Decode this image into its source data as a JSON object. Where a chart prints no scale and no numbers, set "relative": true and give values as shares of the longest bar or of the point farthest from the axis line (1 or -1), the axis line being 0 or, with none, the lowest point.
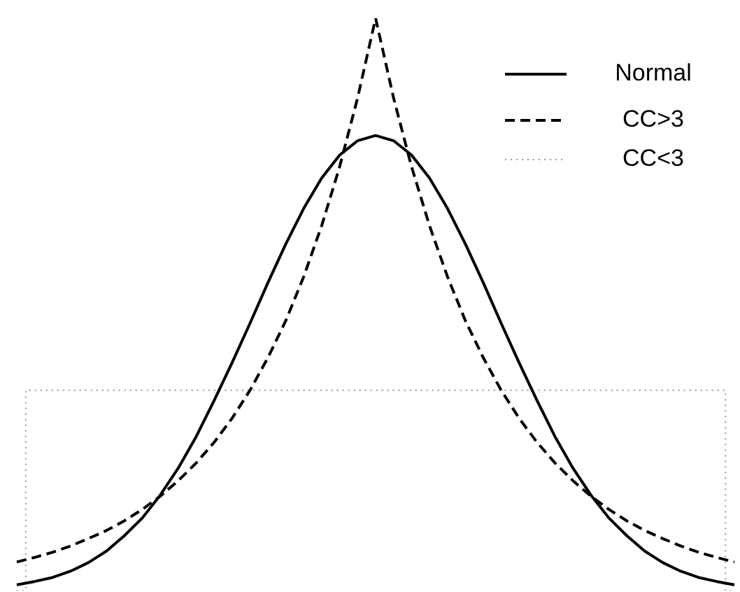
{
  "chart_data": {
    "type": "line",
    "relative": true,
    "legend": "top right",
    "marker": "none",
    "categories": [
      null,
      null,
      null,
      null,
      null,
      null,
      null,
      null,
      null,
      null,
      null,
      null,
      null,
      null,
      null,
      null,
      null,
      null,
      null,
      null,
      null,
      null,
      null,
      null,
      null,
      null,
      null,
      null,
      null,
      null,
      null,
      null,
      null,
      null,
      null,
      null,
      null,
      null,
      null,
      null,
      null
    ],
    "series": [
      {
        "name": "Normal",
        "color": "#000000",
        "line_style": "solid",
        "values": [
          0.01,
          0.016,
          0.023,
          0.034,
          0.049,
          0.069,
          0.096,
          0.127,
          0.167,
          0.214,
          0.269,
          0.332,
          0.398,
          0.467,
          0.538,
          0.606,
          0.668,
          0.721,
          0.761,
          0.786,
          0.795,
          0.786,
          0.761,
          0.721,
          0.668,
          0.606,
          0.538,
          0.467,
          0.398,
          0.332,
          0.269,
          0.214,
          0.167,
          0.127,
          0.096,
          0.069,
          0.049,
          0.034,
          0.023,
          0.016,
          0.01
        ]
      },
      {
        "name": "CC>3",
        "color": "#000000",
        "line_style": "dashed",
        "values": [
          0.05,
          0.058,
          0.067,
          0.078,
          0.091,
          0.105,
          0.122,
          0.142,
          0.165,
          0.192,
          0.223,
          0.259,
          0.301,
          0.35,
          0.407,
          0.472,
          0.549,
          0.638,
          0.741,
          0.861,
          1,
          0.861,
          0.741,
          0.638,
          0.549,
          0.472,
          0.407,
          0.35,
          0.301,
          0.259,
          0.223,
          0.192,
          0.165,
          0.142,
          0.122,
          0.105,
          0.091,
          0.078,
          0.067,
          0.058,
          0.05
        ]
      },
      {
        "name": "CC<3",
        "type": "step",
        "color": "#999999",
        "line_style": "dotted",
        "values": [
          0,
          0.35,
          0.35,
          0.35,
          0.35,
          0.35,
          0.35,
          0.35,
          0.35,
          0.35,
          0.35,
          0.35,
          0.35,
          0.35,
          0.35,
          0.35,
          0.35,
          0.35,
          0.35,
          0.35,
          0.35,
          0.35,
          0.35,
          0.35,
          0.35,
          0.35,
          0.35,
          0.35,
          0.35,
          0.35,
          0.35,
          0.35,
          0.35,
          0.35,
          0.35,
          0.35,
          0.35,
          0.35,
          0.35,
          0.35,
          0
        ]
      }
    ]
  }
}
